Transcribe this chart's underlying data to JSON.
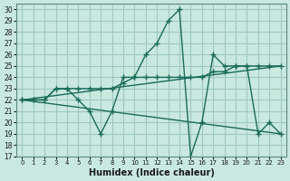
{
  "xlabel": "Humidex (Indice chaleur)",
  "ylabel": "",
  "bg_color": "#c8e8e0",
  "grid_color": "#a0c8c0",
  "line_color": "#1a6b5a",
  "xlim": [
    -0.5,
    23.5
  ],
  "ylim": [
    17,
    30.5
  ],
  "xticks": [
    0,
    1,
    2,
    3,
    4,
    5,
    6,
    7,
    8,
    9,
    10,
    11,
    12,
    13,
    14,
    15,
    16,
    17,
    18,
    19,
    20,
    21,
    22,
    23
  ],
  "yticks": [
    17,
    18,
    19,
    20,
    21,
    22,
    23,
    24,
    25,
    26,
    27,
    28,
    29,
    30
  ],
  "series": [
    {
      "x": [
        0,
        1,
        2,
        3,
        4,
        5,
        6,
        7,
        8,
        9,
        10,
        11,
        12,
        13,
        14,
        15,
        16,
        17,
        18,
        19,
        20,
        21,
        22,
        23
      ],
      "y": [
        22,
        22,
        22,
        23,
        23,
        22,
        21,
        19,
        21,
        24,
        24,
        26,
        27,
        29,
        30,
        17,
        20,
        26,
        25,
        25,
        25,
        19,
        20,
        19
      ],
      "has_markers": true
    },
    {
      "x": [
        0,
        1,
        2,
        3,
        4,
        5,
        6,
        7,
        8,
        9,
        10,
        11,
        12,
        13,
        14,
        15,
        16,
        17,
        18,
        19,
        20,
        21,
        22,
        23
      ],
      "y": [
        22,
        22,
        22,
        23,
        23,
        23,
        23,
        23,
        23,
        23.5,
        24,
        24,
        24,
        24,
        24,
        24,
        24,
        24.5,
        24.5,
        25,
        25,
        25,
        25,
        25
      ],
      "has_markers": true
    },
    {
      "x": [
        0,
        23
      ],
      "y": [
        22,
        25
      ],
      "has_markers": false
    },
    {
      "x": [
        0,
        23
      ],
      "y": [
        22,
        19
      ],
      "has_markers": false
    }
  ]
}
